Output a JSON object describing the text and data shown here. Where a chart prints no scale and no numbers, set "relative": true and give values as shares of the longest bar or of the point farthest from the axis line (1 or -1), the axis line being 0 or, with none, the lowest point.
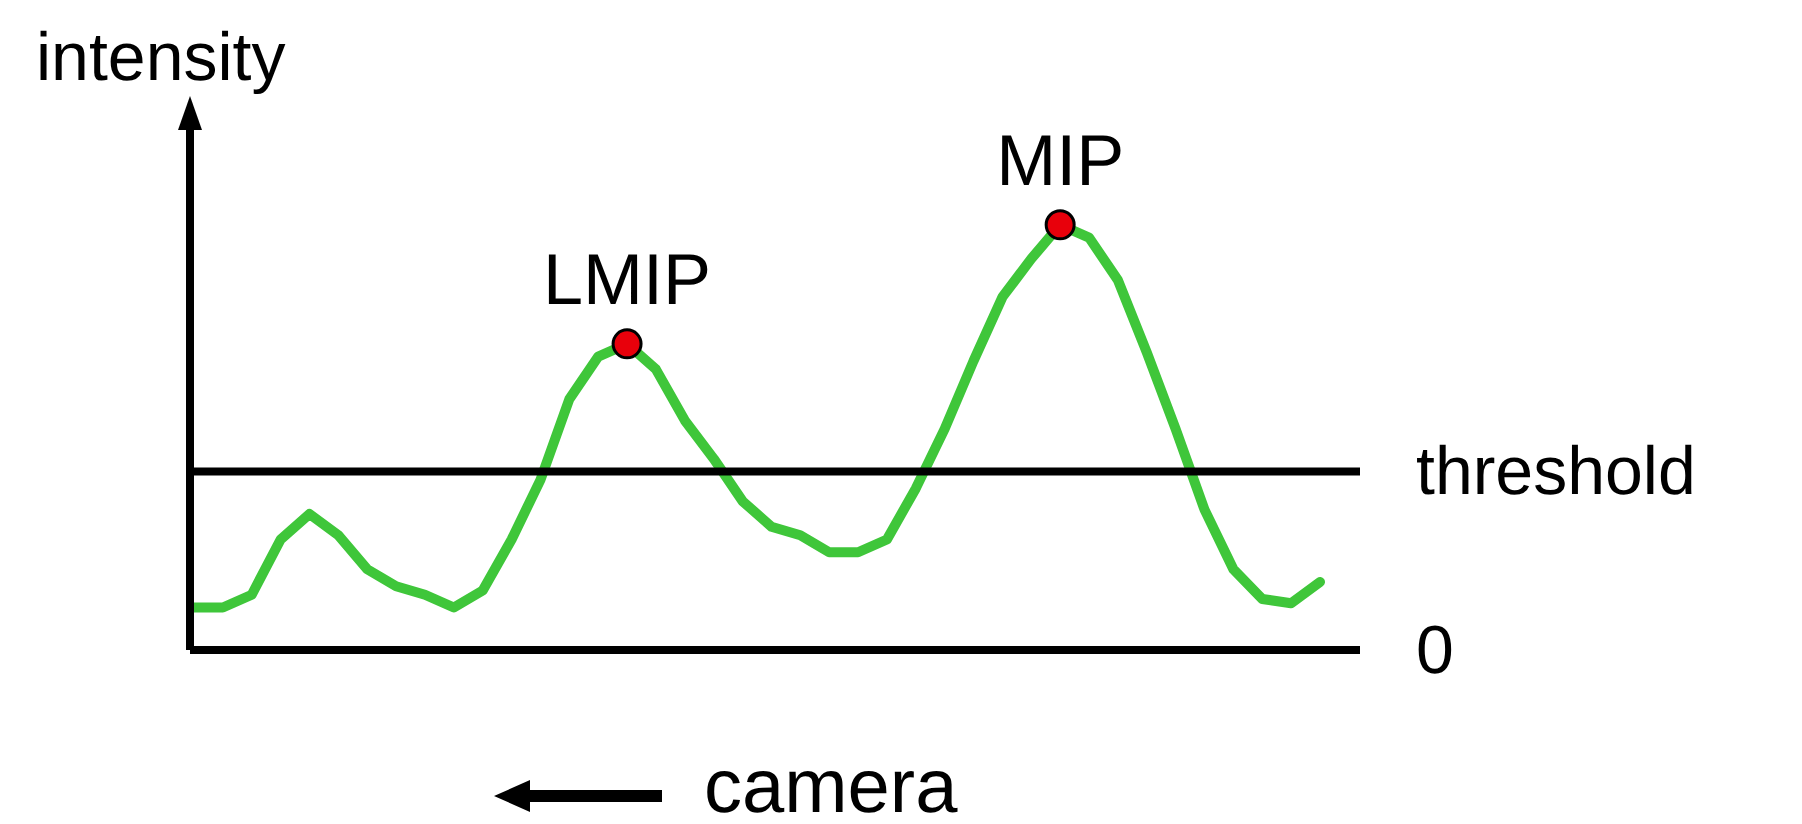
{
  "chart_data": {
    "type": "line",
    "relative": true,
    "xlabel": "camera",
    "ylabel": "intensity",
    "categories": [
      null,
      null,
      null,
      null,
      null,
      null,
      null,
      null,
      null,
      null,
      null,
      null,
      null,
      null,
      null,
      null,
      null,
      null,
      null,
      null,
      null,
      null,
      null,
      null,
      null,
      null,
      null,
      null,
      null,
      null,
      null,
      null,
      null,
      null,
      null,
      null,
      null,
      null,
      null,
      null
    ],
    "series": [
      {
        "color": "#3fc63a",
        "values": [
          0.1,
          0.1,
          0.13,
          0.26,
          0.32,
          0.27,
          0.19,
          0.15,
          0.13,
          0.1,
          0.14,
          0.26,
          0.4,
          0.59,
          0.69,
          0.72,
          0.66,
          0.54,
          0.45,
          0.35,
          0.29,
          0.27,
          0.23,
          0.23,
          0.26,
          0.38,
          0.52,
          0.68,
          0.83,
          0.92,
          1.0,
          0.97,
          0.87,
          0.7,
          0.52,
          0.33,
          0.19,
          0.12,
          0.11,
          0.16
        ]
      }
    ],
    "ref_lines": [
      {
        "axis": "y",
        "value": 0.42,
        "label": "threshold",
        "color": "#000000"
      },
      {
        "axis": "y",
        "value": 0,
        "label": "0",
        "color": "#000000"
      }
    ],
    "annotations": [
      {
        "text": "LMIP",
        "y": 0.72
      },
      {
        "text": "MIP",
        "y": 1.0
      }
    ]
  }
}
